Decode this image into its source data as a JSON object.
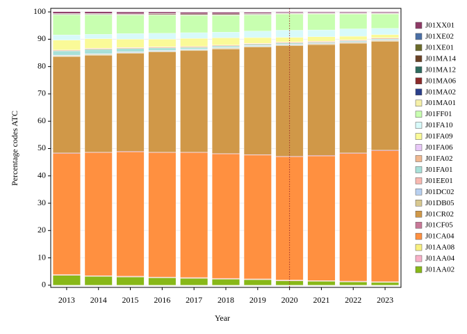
{
  "chart_data": {
    "type": "stacked_bar",
    "xlabel": "Year",
    "ylabel": "Percentage codes ATC",
    "categories": [
      "2013",
      "2014",
      "2015",
      "2016",
      "2017",
      "2018",
      "2019",
      "2020",
      "2021",
      "2022",
      "2023"
    ],
    "ylim": [
      -0.8,
      101.3
    ],
    "yticks": [
      0,
      10,
      20,
      30,
      40,
      50,
      60,
      70,
      80,
      90,
      100
    ],
    "vline": "2020",
    "vline_color": "#a0302a",
    "legend": "right",
    "series": [
      {
        "name": "J01XX01",
        "color": "#8e3a66",
        "values": [
          0.6,
          0.6,
          0.6,
          0.5,
          0.5,
          0.5,
          0.4,
          0.3,
          0.3,
          0.3,
          0.3
        ]
      },
      {
        "name": "J01XE02",
        "color": "#4a6fa5",
        "values": [
          0.05,
          0.05,
          0.05,
          0.05,
          0.05,
          0.05,
          0.05,
          0.05,
          0.05,
          0.05,
          0.05
        ]
      },
      {
        "name": "J01XE01",
        "color": "#6b6b2a",
        "values": [
          0.05,
          0.05,
          0.05,
          0.05,
          0.05,
          0.05,
          0.05,
          0.05,
          0.05,
          0.05,
          0.05
        ]
      },
      {
        "name": "J01MA14",
        "color": "#6b4226",
        "values": [
          0.2,
          0.2,
          0.2,
          0.3,
          0.3,
          0.3,
          0.2,
          0.1,
          0.1,
          0.1,
          0.1
        ]
      },
      {
        "name": "J01MA12",
        "color": "#2e6b5e",
        "values": [
          0.05,
          0.05,
          0.05,
          0.05,
          0.05,
          0.05,
          0.05,
          0.05,
          0.05,
          0.05,
          0.05
        ]
      },
      {
        "name": "J01MA06",
        "color": "#8b2a2a",
        "values": [
          0.05,
          0.05,
          0.05,
          0.05,
          0.05,
          0.05,
          0.05,
          0.05,
          0.05,
          0.05,
          0.05
        ]
      },
      {
        "name": "J01MA02",
        "color": "#2a3f8b",
        "values": [
          0.05,
          0.05,
          0.05,
          0.05,
          0.05,
          0.05,
          0.05,
          0.05,
          0.05,
          0.05,
          0.05
        ]
      },
      {
        "name": "J01MA01",
        "color": "#f5f0a8",
        "values": [
          0.1,
          0.1,
          0.1,
          0.1,
          0.1,
          0.1,
          0.1,
          0.1,
          0.1,
          0.1,
          0.1
        ]
      },
      {
        "name": "J01FF01",
        "color": "#c8ffb0",
        "values": [
          7.3,
          7.1,
          6.7,
          6.6,
          6.3,
          6.1,
          5.9,
          5.9,
          5.8,
          5.4,
          5.2
        ]
      },
      {
        "name": "J01FA10",
        "color": "#d8fafa",
        "values": [
          1.9,
          1.6,
          2.1,
          2.2,
          2.1,
          2.1,
          2.4,
          2.6,
          2.5,
          2.7,
          2.3
        ]
      },
      {
        "name": "J01FA09",
        "color": "#fafa98",
        "values": [
          3.6,
          3.5,
          3.0,
          2.8,
          2.9,
          2.6,
          2.1,
          1.7,
          1.6,
          1.3,
          1.2
        ]
      },
      {
        "name": "J01FA06",
        "color": "#e8c8f8",
        "values": [
          0.1,
          0.1,
          0.1,
          0.1,
          0.1,
          0.1,
          0.1,
          0.1,
          0.1,
          0.1,
          0.1
        ]
      },
      {
        "name": "J01FA02",
        "color": "#f0b890",
        "values": [
          0.3,
          0.3,
          0.3,
          0.3,
          0.3,
          0.3,
          0.3,
          0.3,
          0.3,
          0.3,
          0.3
        ]
      },
      {
        "name": "J01FA01",
        "color": "#a8e0d8",
        "values": [
          1.5,
          1.6,
          1.2,
          0.9,
          0.6,
          0.5,
          0.4,
          0.4,
          0.3,
          0.3,
          0.3
        ]
      },
      {
        "name": "J01EE01",
        "color": "#f8b8b0",
        "values": [
          0.1,
          0.1,
          0.1,
          0.1,
          0.1,
          0.1,
          0.1,
          0.1,
          0.1,
          0.1,
          0.1
        ]
      },
      {
        "name": "J01DC02",
        "color": "#b8d0f0",
        "values": [
          0.2,
          0.2,
          0.2,
          0.2,
          0.2,
          0.2,
          0.2,
          0.2,
          0.2,
          0.2,
          0.2
        ]
      },
      {
        "name": "J01DB05",
        "color": "#d8c890",
        "values": [
          0.3,
          0.3,
          0.3,
          0.3,
          0.3,
          0.3,
          0.3,
          0.3,
          0.3,
          0.3,
          0.3
        ]
      },
      {
        "name": "J01CR02",
        "color": "#d09848",
        "values": [
          35.2,
          35.4,
          35.8,
          36.6,
          37.1,
          38.2,
          39.3,
          40.4,
          40.5,
          40.1,
          39.8
        ]
      },
      {
        "name": "J01CF05",
        "color": "#c87898",
        "values": [
          0.2,
          0.2,
          0.2,
          0.2,
          0.2,
          0.2,
          0.2,
          0.2,
          0.2,
          0.2,
          0.2
        ]
      },
      {
        "name": "J01CA04",
        "color": "#ff9040",
        "values": [
          44.3,
          45.0,
          45.5,
          45.5,
          45.7,
          45.5,
          45.3,
          45.1,
          45.6,
          46.7,
          47.9
        ]
      },
      {
        "name": "J01AA08",
        "color": "#f8f080",
        "values": [
          0.1,
          0.1,
          0.1,
          0.1,
          0.1,
          0.1,
          0.1,
          0.1,
          0.1,
          0.1,
          0.1
        ]
      },
      {
        "name": "J01AA04",
        "color": "#f8b0c8",
        "values": [
          0.2,
          0.2,
          0.2,
          0.2,
          0.2,
          0.2,
          0.2,
          0.2,
          0.2,
          0.2,
          0.2
        ]
      },
      {
        "name": "J01AA02",
        "color": "#88b818",
        "values": [
          3.6,
          3.2,
          3.0,
          2.7,
          2.5,
          2.2,
          2.0,
          1.6,
          1.4,
          1.2,
          1.0
        ]
      }
    ]
  }
}
